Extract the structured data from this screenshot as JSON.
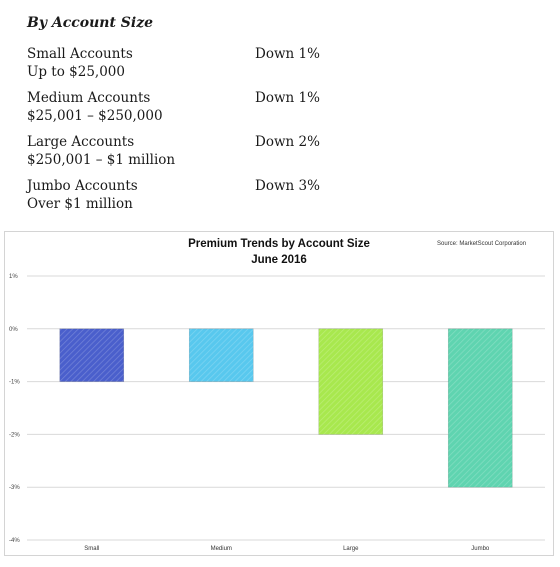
{
  "section": {
    "heading": "By Account Size",
    "accounts": [
      {
        "name": "Small Accounts",
        "range": "Up to $25,000",
        "change": "Down 1%"
      },
      {
        "name": "Medium Accounts",
        "range": "$25,001 – $250,000",
        "change": "Down 1%"
      },
      {
        "name": "Large Accounts",
        "range": "$250,001 – $1 million",
        "change": "Down 2%"
      },
      {
        "name": "Jumbo Accounts",
        "range": "Over $1 million",
        "change": "Down 3%"
      }
    ]
  },
  "chart_data": {
    "type": "bar",
    "title": "Premium Trends by Account Size",
    "subtitle": "June 2016",
    "source": "Source: MarketScout Corporation",
    "categories": [
      "Small",
      "Medium",
      "Large",
      "Jumbo"
    ],
    "values": [
      -1,
      -1,
      -2,
      -3
    ],
    "ylim": [
      -4,
      1
    ],
    "yticks": [
      1,
      0,
      -1,
      -2,
      -3,
      -4
    ],
    "ytick_labels": [
      "1%",
      "0%",
      "-1%",
      "-2%",
      "-3%",
      "-4%"
    ],
    "colors": [
      "#4a5fcc",
      "#58c8ee",
      "#a8e84e",
      "#5fd4b0"
    ],
    "grid": true,
    "legend": "none"
  }
}
